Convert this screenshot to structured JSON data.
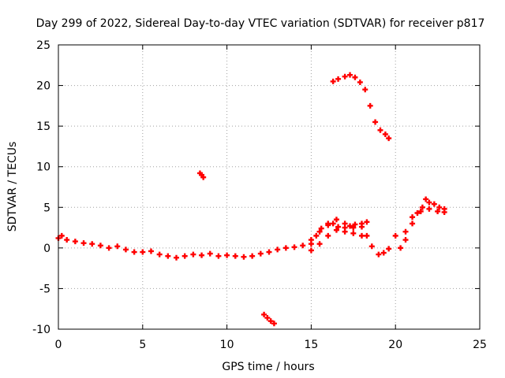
{
  "chart_data": {
    "type": "scatter",
    "title": "Day 299 of 2022, Sidereal Day-to-day VTEC variation (SDTVAR) for receiver p817",
    "xlabel": "GPS time / hours",
    "ylabel": "SDTVAR / TECUs",
    "xlim": [
      0,
      25
    ],
    "ylim": [
      -10,
      25
    ],
    "xticks": [
      0,
      5,
      10,
      15,
      20,
      25
    ],
    "yticks": [
      -10,
      -5,
      0,
      5,
      10,
      15,
      20,
      25
    ],
    "xtick_labels": [
      "0",
      "5",
      "10",
      "15",
      "20",
      "25"
    ],
    "ytick_labels": [
      "-10",
      "-5",
      "0",
      "5",
      "10",
      "15",
      "20",
      "25"
    ],
    "grid": true,
    "marker_color": "#ff0000",
    "series": [
      {
        "name": "main-trace",
        "x": [
          0.0,
          0.2,
          0.5,
          1.0,
          1.5,
          2.0,
          2.5,
          3.0,
          3.5,
          4.0,
          4.5,
          5.0,
          5.5,
          6.0,
          6.5,
          7.0,
          7.5,
          8.0,
          8.5,
          9.0,
          9.5,
          10.0,
          10.5,
          11.0,
          11.5,
          12.0,
          12.5,
          13.0,
          13.5,
          14.0,
          14.5,
          15.0,
          15.3,
          15.6,
          16.0,
          16.3,
          16.6,
          17.0,
          17.3,
          17.6,
          18.0,
          18.3,
          18.6,
          19.0,
          19.3,
          19.6,
          20.0
        ],
        "y": [
          1.2,
          1.5,
          1.0,
          0.8,
          0.6,
          0.5,
          0.3,
          0.0,
          0.2,
          -0.2,
          -0.5,
          -0.5,
          -0.4,
          -0.8,
          -1.0,
          -1.2,
          -1.0,
          -0.8,
          -0.9,
          -0.7,
          -1.0,
          -0.9,
          -1.0,
          -1.1,
          -1.0,
          -0.7,
          -0.5,
          -0.2,
          0.0,
          0.1,
          0.3,
          0.5,
          1.5,
          2.4,
          2.8,
          3.0,
          2.6,
          2.5,
          2.7,
          2.9,
          2.6,
          1.5,
          0.2,
          -0.8,
          -0.6,
          -0.1,
          1.5
        ]
      },
      {
        "name": "main-trace-upper-branch",
        "x": [
          15.0,
          15.5,
          16.0,
          16.5,
          17.0,
          17.5,
          18.0,
          18.3
        ],
        "y": [
          1.0,
          2.0,
          3.0,
          3.5,
          3.0,
          2.5,
          3.0,
          3.2
        ]
      },
      {
        "name": "main-trace-lower-branch",
        "x": [
          15.0,
          15.5,
          16.0,
          16.5,
          17.0,
          17.5,
          18.0
        ],
        "y": [
          -0.3,
          0.5,
          1.5,
          2.2,
          2.0,
          1.8,
          1.5
        ]
      },
      {
        "name": "late-trace",
        "x": [
          20.3,
          20.6,
          21.0,
          21.3,
          21.6,
          21.8,
          22.0,
          22.3,
          22.6,
          22.9
        ],
        "y": [
          0.0,
          2.0,
          3.8,
          4.3,
          5.0,
          6.0,
          5.6,
          5.4,
          5.0,
          4.8
        ]
      },
      {
        "name": "late-trace-lower",
        "x": [
          20.6,
          21.0,
          21.5,
          22.0,
          22.5,
          22.9
        ],
        "y": [
          1.0,
          3.0,
          4.5,
          4.8,
          4.5,
          4.4
        ]
      },
      {
        "name": "upper-arc",
        "x": [
          16.3,
          16.6,
          17.0,
          17.3,
          17.6,
          17.9,
          18.2,
          18.5,
          18.8,
          19.1,
          19.4,
          19.6
        ],
        "y": [
          20.5,
          20.8,
          21.1,
          21.3,
          21.0,
          20.4,
          19.5,
          17.5,
          15.5,
          14.5,
          14.0,
          13.5
        ]
      },
      {
        "name": "isolated-segment-positive",
        "x": [
          8.4,
          8.5,
          8.6
        ],
        "y": [
          9.2,
          9.0,
          8.7
        ]
      },
      {
        "name": "isolated-segment-negative",
        "x": [
          12.2,
          12.4,
          12.6,
          12.8
        ],
        "y": [
          -8.2,
          -8.6,
          -9.0,
          -9.3
        ]
      }
    ]
  }
}
